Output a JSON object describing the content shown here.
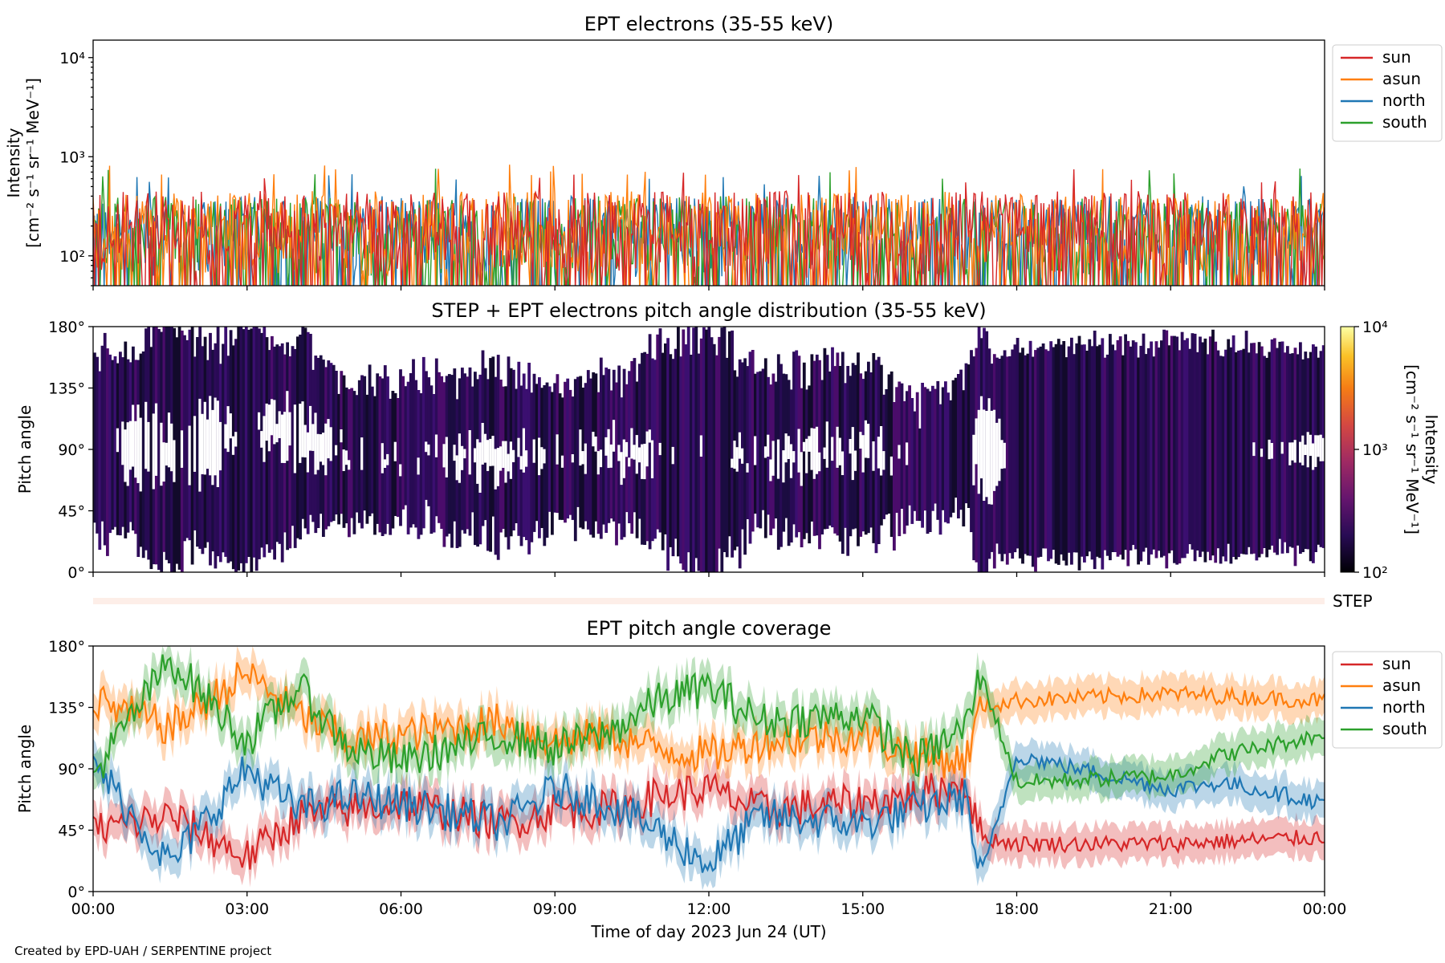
{
  "footer": "Created by EPD-UAH / SERPENTINE project",
  "xaxis": {
    "label": "Time of day 2023 Jun 24 (UT)",
    "ticks": [
      "00:00",
      "03:00",
      "06:00",
      "09:00",
      "12:00",
      "15:00",
      "18:00",
      "21:00",
      "00:00"
    ],
    "range_hours": [
      0,
      24
    ]
  },
  "chart_data": [
    {
      "type": "line",
      "title": "EPT electrons (35-55 keV)",
      "ylabel_line1": "Intensity",
      "ylabel_line2": "[cm⁻² s⁻¹ sr⁻¹ MeV⁻¹]",
      "yscale": "log",
      "ylim": [
        50,
        15000
      ],
      "yticks": [
        {
          "value": 100,
          "label": "10²"
        },
        {
          "value": 1000,
          "label": "10³"
        },
        {
          "value": 10000,
          "label": "10⁴"
        }
      ],
      "legend_position": "right",
      "series": [
        {
          "name": "sun",
          "color": "#d62728",
          "typical_range": [
            60,
            450
          ],
          "peak": 750
        },
        {
          "name": "asun",
          "color": "#ff7f0e",
          "typical_range": [
            60,
            450
          ],
          "peak": 850
        },
        {
          "name": "north",
          "color": "#1f77b4",
          "typical_range": [
            60,
            400
          ],
          "peak": 700
        },
        {
          "name": "south",
          "color": "#2ca02c",
          "typical_range": [
            60,
            400
          ],
          "peak": 800
        }
      ]
    },
    {
      "type": "heatmap",
      "title": "STEP + EPT electrons pitch angle distribution (35-55 keV)",
      "ylabel": "Pitch angle",
      "ylim": [
        0,
        180
      ],
      "yticks": [
        "0°",
        "45°",
        "90°",
        "135°",
        "180°"
      ],
      "colorbar": {
        "label_line1": "Intensity",
        "label_line2": "[cm⁻² s⁻¹ sr⁻¹ MeV⁻¹]",
        "scale": "log",
        "range": [
          100,
          10000
        ],
        "ticks": [
          "10²",
          "10³",
          "10⁴"
        ]
      }
    },
    {
      "type": "bar",
      "label": "STEP",
      "color": "#fdeee8"
    },
    {
      "type": "line",
      "title": "EPT pitch angle coverage",
      "ylabel": "Pitch angle",
      "ylim": [
        0,
        180
      ],
      "yticks": [
        "0°",
        "45°",
        "90°",
        "135°",
        "180°"
      ],
      "legend_position": "right",
      "series": [
        {
          "name": "sun",
          "color": "#d62728",
          "key_points": [
            [
              0,
              45
            ],
            [
              1.5,
              55
            ],
            [
              3,
              25
            ],
            [
              4,
              55
            ],
            [
              5,
              60
            ],
            [
              6,
              65
            ],
            [
              8,
              50
            ],
            [
              9,
              60
            ],
            [
              10,
              60
            ],
            [
              11,
              70
            ],
            [
              12,
              75
            ],
            [
              13,
              60
            ],
            [
              15,
              65
            ],
            [
              16,
              70
            ],
            [
              17,
              80
            ],
            [
              17.3,
              40
            ],
            [
              18,
              35
            ],
            [
              21,
              35
            ],
            [
              24,
              40
            ]
          ]
        },
        {
          "name": "asun",
          "color": "#ff7f0e",
          "key_points": [
            [
              0,
              140
            ],
            [
              1.5,
              120
            ],
            [
              3,
              160
            ],
            [
              4,
              130
            ],
            [
              5,
              110
            ],
            [
              6,
              115
            ],
            [
              8,
              125
            ],
            [
              9,
              110
            ],
            [
              10,
              115
            ],
            [
              11,
              105
            ],
            [
              12,
              100
            ],
            [
              13,
              110
            ],
            [
              15,
              115
            ],
            [
              16,
              100
            ],
            [
              17,
              95
            ],
            [
              17.3,
              135
            ],
            [
              18,
              140
            ],
            [
              21,
              145
            ],
            [
              24,
              140
            ]
          ]
        },
        {
          "name": "north",
          "color": "#1f77b4",
          "key_points": [
            [
              0,
              95
            ],
            [
              1.5,
              20
            ],
            [
              3,
              90
            ],
            [
              4,
              60
            ],
            [
              5,
              70
            ],
            [
              6,
              65
            ],
            [
              8,
              50
            ],
            [
              9,
              75
            ],
            [
              10,
              65
            ],
            [
              11,
              45
            ],
            [
              12,
              20
            ],
            [
              13,
              55
            ],
            [
              15,
              50
            ],
            [
              16,
              60
            ],
            [
              17,
              70
            ],
            [
              17.3,
              10
            ],
            [
              18,
              100
            ],
            [
              21,
              75
            ],
            [
              22,
              80
            ],
            [
              24,
              65
            ]
          ]
        },
        {
          "name": "south",
          "color": "#2ca02c",
          "key_points": [
            [
              0,
              85
            ],
            [
              1.5,
              170
            ],
            [
              3,
              110
            ],
            [
              4,
              150
            ],
            [
              5,
              105
            ],
            [
              6,
              95
            ],
            [
              8,
              115
            ],
            [
              9,
              105
            ],
            [
              10,
              115
            ],
            [
              11,
              140
            ],
            [
              12,
              150
            ],
            [
              13,
              125
            ],
            [
              15,
              130
            ],
            [
              16,
              95
            ],
            [
              17,
              120
            ],
            [
              17.3,
              160
            ],
            [
              18,
              80
            ],
            [
              21,
              85
            ],
            [
              22,
              100
            ],
            [
              24,
              115
            ]
          ]
        }
      ]
    }
  ]
}
